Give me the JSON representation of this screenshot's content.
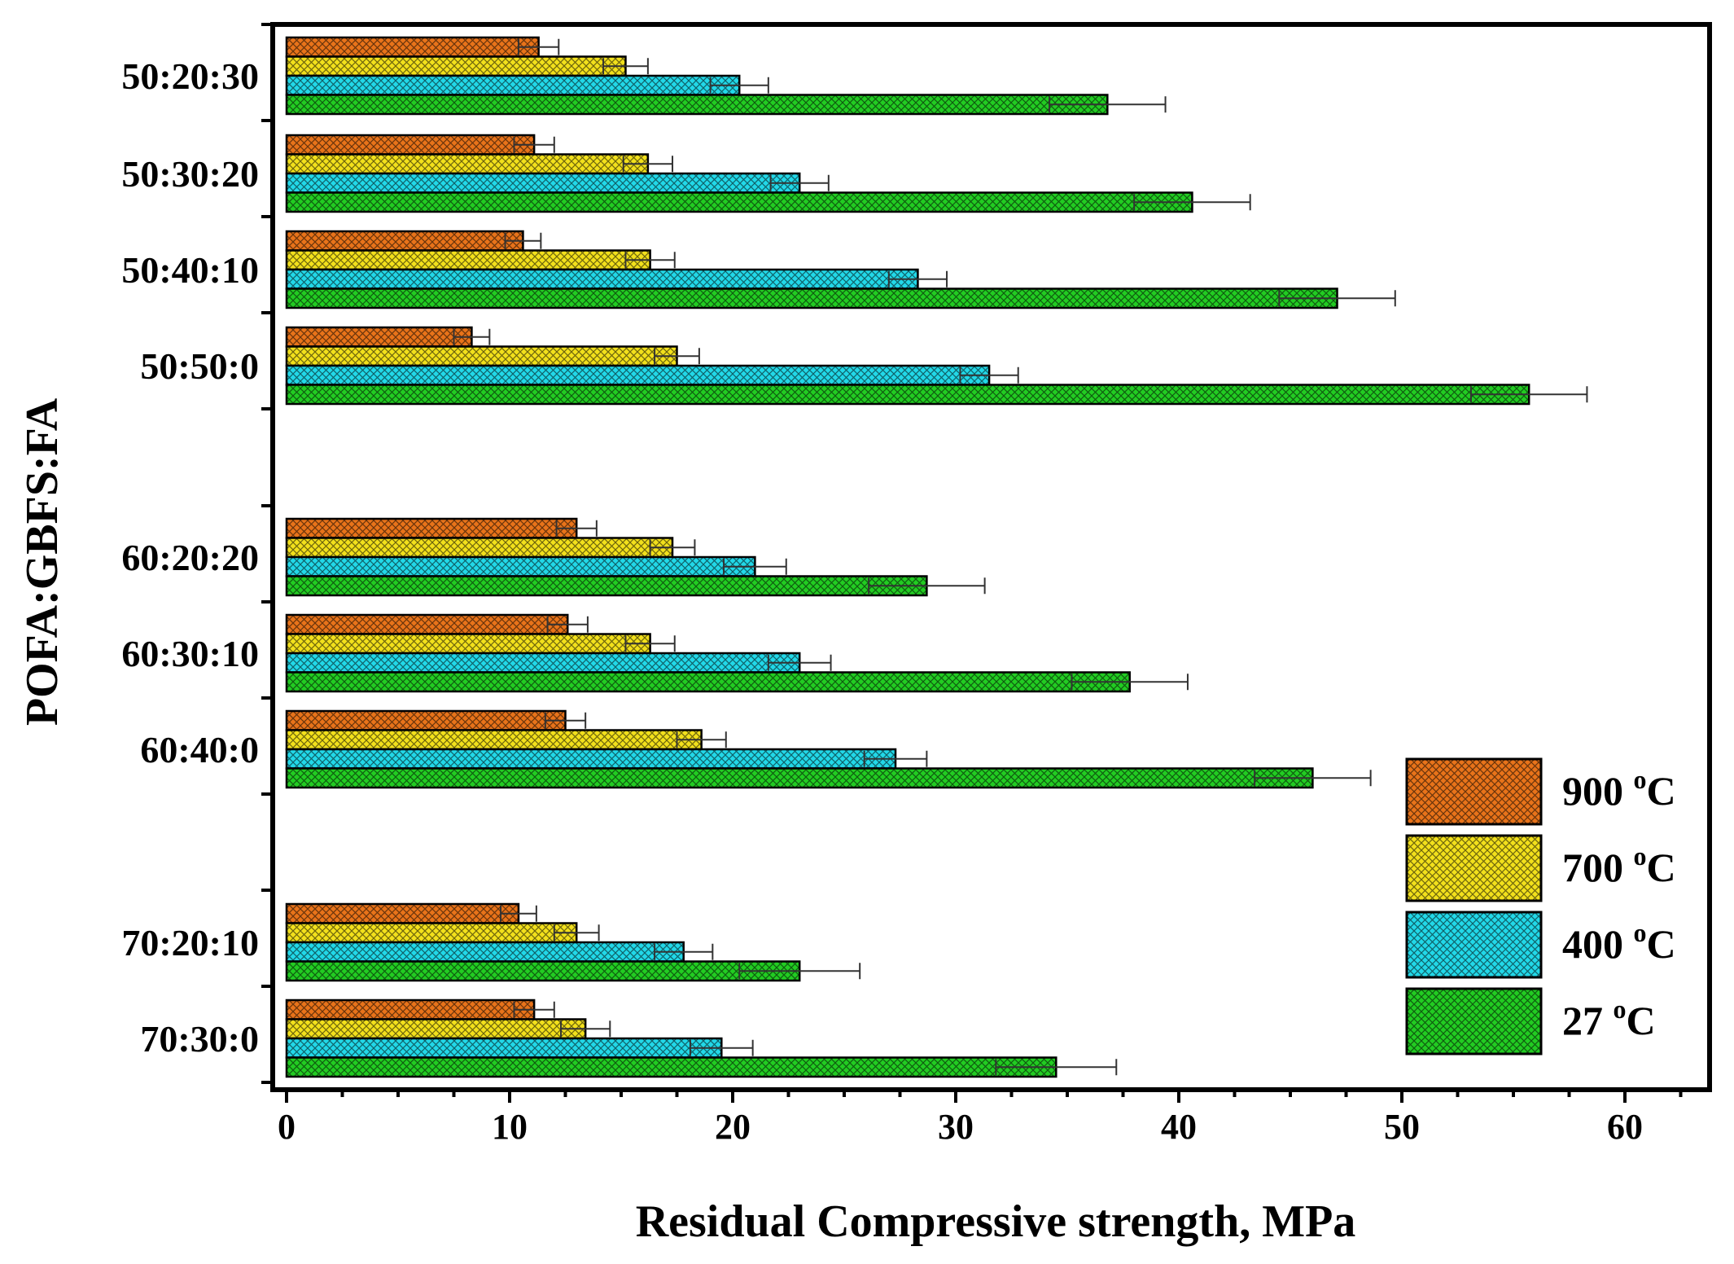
{
  "chart_data": {
    "type": "bar",
    "orientation": "horizontal",
    "xlabel": "Residual Compressive strength, MPa",
    "ylabel": "POFA:GBFS:FA",
    "xlim": [
      0,
      64
    ],
    "xticks": [
      0,
      10,
      20,
      30,
      40,
      50,
      60
    ],
    "grid": false,
    "legend_position": "bottom-right",
    "groups": [
      {
        "name": "50:20:30",
        "values": {
          "900": 11.3,
          "700": 15.2,
          "400": 20.3,
          "27": 36.8
        },
        "errors": {
          "900": 0.9,
          "700": 1.0,
          "400": 1.3,
          "27": 2.6
        }
      },
      {
        "name": "50:30:20",
        "values": {
          "900": 11.1,
          "700": 16.2,
          "400": 23.0,
          "27": 40.6
        },
        "errors": {
          "900": 0.9,
          "700": 1.1,
          "400": 1.3,
          "27": 2.6
        }
      },
      {
        "name": "50:40:10",
        "values": {
          "900": 10.6,
          "700": 16.3,
          "400": 28.3,
          "27": 47.1
        },
        "errors": {
          "900": 0.8,
          "700": 1.1,
          "400": 1.3,
          "27": 2.6
        }
      },
      {
        "name": "50:50:0",
        "values": {
          "900": 8.3,
          "700": 17.5,
          "400": 31.5,
          "27": 55.7
        },
        "errors": {
          "900": 0.8,
          "700": 1.0,
          "400": 1.3,
          "27": 2.6
        }
      },
      {
        "name": "60:20:20",
        "values": {
          "900": 13.0,
          "700": 17.3,
          "400": 21.0,
          "27": 28.7
        },
        "errors": {
          "900": 0.9,
          "700": 1.0,
          "400": 1.4,
          "27": 2.6
        }
      },
      {
        "name": "60:30:10",
        "values": {
          "900": 12.6,
          "700": 16.3,
          "400": 23.0,
          "27": 37.8
        },
        "errors": {
          "900": 0.9,
          "700": 1.1,
          "400": 1.4,
          "27": 2.6
        }
      },
      {
        "name": "60:40:0",
        "values": {
          "900": 12.5,
          "700": 18.6,
          "400": 27.3,
          "27": 46.0
        },
        "errors": {
          "900": 0.9,
          "700": 1.1,
          "400": 1.4,
          "27": 2.6
        }
      },
      {
        "name": "70:20:10",
        "values": {
          "900": 10.4,
          "700": 13.0,
          "400": 17.8,
          "27": 23.0
        },
        "errors": {
          "900": 0.8,
          "700": 1.0,
          "400": 1.3,
          "27": 2.7
        }
      },
      {
        "name": "70:30:0",
        "values": {
          "900": 11.1,
          "700": 13.4,
          "400": 19.5,
          "27": 34.5
        },
        "errors": {
          "900": 0.9,
          "700": 1.1,
          "400": 1.4,
          "27": 2.7
        }
      }
    ],
    "series": [
      {
        "key": "900",
        "name": "900 °C",
        "label_num": "900",
        "label_sup": "o",
        "label_unit": "C",
        "color": "#e8731a"
      },
      {
        "key": "700",
        "name": "700 °C",
        "label_num": "700",
        "label_sup": "o",
        "label_unit": "C",
        "color": "#f2e01c"
      },
      {
        "key": "400",
        "name": "400 °C",
        "label_num": "400",
        "label_sup": "o",
        "label_unit": "C",
        "color": "#22d8e8"
      },
      {
        "key": "27",
        "name": "27 °C",
        "label_num": "27",
        "label_sup": "o",
        "label_unit": "C",
        "color": "#22cc22"
      }
    ]
  }
}
